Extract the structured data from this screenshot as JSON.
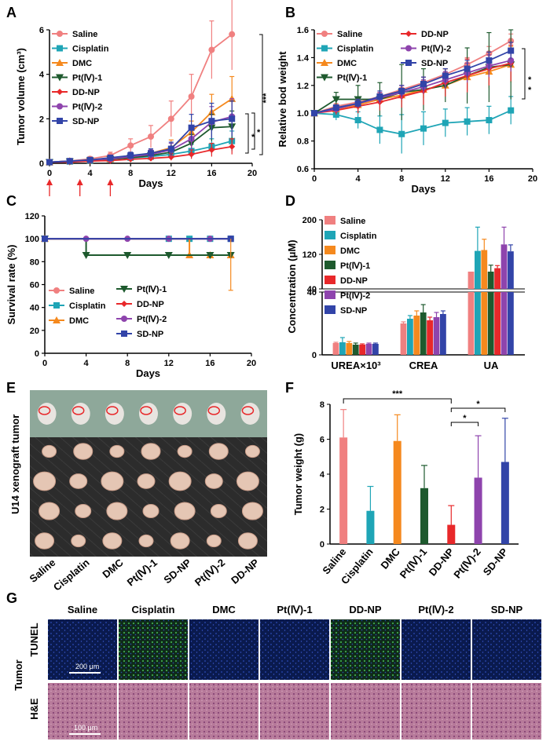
{
  "panel_letters": [
    "A",
    "B",
    "C",
    "D",
    "E",
    "F",
    "G"
  ],
  "colors": {
    "Saline": "#f08080",
    "Cisplatin": "#1fa5b6",
    "DMC": "#f5891e",
    "Pt(Ⅳ)-1": "#1e5a2e",
    "DD-NP": "#e8282a",
    "Pt(Ⅳ)-2": "#8e44ad",
    "SD-NP": "#3244a8"
  },
  "chart_data": [
    {
      "panel": "A",
      "type": "line",
      "xlabel": "Days",
      "ylabel": "Tumor volume (cm³)",
      "xlim": [
        0,
        20
      ],
      "ylim": [
        0,
        6
      ],
      "xticks": [
        "0",
        "4",
        "8",
        "12",
        "16",
        "20"
      ],
      "yticks": [
        "0",
        "2",
        "4",
        "6"
      ],
      "x": [
        0,
        2,
        4,
        6,
        8,
        10,
        12,
        14,
        16,
        18
      ],
      "series": [
        {
          "name": "Saline",
          "values": [
            0.05,
            0.1,
            0.2,
            0.35,
            0.8,
            1.2,
            2.0,
            3.0,
            5.1,
            5.8
          ],
          "err": [
            0.03,
            0.05,
            0.1,
            0.15,
            0.3,
            0.5,
            0.8,
            1.0,
            1.3,
            1.6
          ]
        },
        {
          "name": "Cisplatin",
          "values": [
            0.05,
            0.08,
            0.12,
            0.18,
            0.25,
            0.3,
            0.4,
            0.55,
            0.75,
            1.0
          ],
          "err": [
            0.02,
            0.03,
            0.05,
            0.08,
            0.1,
            0.15,
            0.2,
            0.3,
            0.35,
            0.45
          ]
        },
        {
          "name": "DMC",
          "values": [
            0.05,
            0.1,
            0.15,
            0.2,
            0.3,
            0.45,
            0.7,
            1.4,
            2.3,
            2.9
          ],
          "err": [
            0.02,
            0.05,
            0.08,
            0.1,
            0.15,
            0.2,
            0.35,
            0.5,
            0.8,
            1.0
          ]
        },
        {
          "name": "Pt(Ⅳ)-1",
          "values": [
            0.05,
            0.08,
            0.12,
            0.18,
            0.25,
            0.35,
            0.5,
            0.9,
            1.6,
            1.65
          ],
          "err": [
            0.02,
            0.04,
            0.06,
            0.08,
            0.1,
            0.15,
            0.2,
            0.4,
            0.6,
            0.7
          ]
        },
        {
          "name": "DD-NP",
          "values": [
            0.05,
            0.06,
            0.1,
            0.12,
            0.18,
            0.22,
            0.28,
            0.4,
            0.6,
            0.75
          ],
          "err": [
            0.02,
            0.03,
            0.05,
            0.06,
            0.08,
            0.1,
            0.15,
            0.2,
            0.3,
            0.35
          ]
        },
        {
          "name": "Pt(Ⅳ)-2",
          "values": [
            0.05,
            0.1,
            0.15,
            0.2,
            0.3,
            0.4,
            0.6,
            1.1,
            1.85,
            2.1
          ],
          "err": [
            0.02,
            0.05,
            0.08,
            0.1,
            0.15,
            0.2,
            0.3,
            0.5,
            0.7,
            0.8
          ]
        },
        {
          "name": "SD-NP",
          "values": [
            0.05,
            0.1,
            0.15,
            0.25,
            0.35,
            0.45,
            0.65,
            1.6,
            1.9,
            2.0
          ],
          "err": [
            0.02,
            0.05,
            0.08,
            0.1,
            0.15,
            0.2,
            0.3,
            0.6,
            0.8,
            0.8
          ]
        }
      ],
      "significance": [
        "***",
        "*",
        "*"
      ],
      "dosing_days": [
        0,
        3,
        6
      ]
    },
    {
      "panel": "B",
      "type": "line",
      "xlabel": "Days",
      "ylabel": "Relative bod weight",
      "xlim": [
        0,
        20
      ],
      "ylim": [
        0.6,
        1.6
      ],
      "xticks": [
        "0",
        "4",
        "8",
        "12",
        "16",
        "20"
      ],
      "yticks": [
        "0.6",
        "0.8",
        "1.0",
        "1.2",
        "1.4",
        "1.6"
      ],
      "x": [
        0,
        2,
        4,
        6,
        8,
        10,
        12,
        14,
        16,
        18
      ],
      "series": [
        {
          "name": "Saline",
          "values": [
            1.0,
            1.05,
            1.08,
            1.12,
            1.17,
            1.22,
            1.28,
            1.35,
            1.43,
            1.52
          ],
          "err": [
            0.01,
            0.02,
            0.02,
            0.03,
            0.03,
            0.04,
            0.04,
            0.05,
            0.05,
            0.05
          ]
        },
        {
          "name": "Cisplatin",
          "values": [
            1.0,
            0.99,
            0.95,
            0.88,
            0.85,
            0.89,
            0.93,
            0.94,
            0.95,
            1.02
          ],
          "err": [
            0.01,
            0.04,
            0.06,
            0.1,
            0.14,
            0.12,
            0.1,
            0.1,
            0.1,
            0.1
          ]
        },
        {
          "name": "DMC",
          "values": [
            1.0,
            1.03,
            1.06,
            1.1,
            1.13,
            1.17,
            1.2,
            1.26,
            1.3,
            1.35
          ],
          "err": [
            0.01,
            0.02,
            0.03,
            0.04,
            0.05,
            0.06,
            0.08,
            0.1,
            0.12,
            0.13
          ]
        },
        {
          "name": "Pt(Ⅳ)-1",
          "values": [
            1.0,
            1.1,
            1.1,
            1.1,
            1.15,
            1.17,
            1.2,
            1.27,
            1.33,
            1.35
          ],
          "err": [
            0.01,
            0.05,
            0.1,
            0.12,
            0.2,
            0.15,
            0.12,
            0.2,
            0.25,
            0.25
          ]
        },
        {
          "name": "DD-NP",
          "values": [
            1.0,
            1.02,
            1.05,
            1.08,
            1.12,
            1.16,
            1.22,
            1.27,
            1.32,
            1.36
          ],
          "err": [
            0.01,
            0.03,
            0.05,
            0.06,
            0.08,
            0.1,
            0.1,
            0.12,
            0.12,
            0.13
          ]
        },
        {
          "name": "Pt(Ⅳ)-2",
          "values": [
            1.0,
            1.03,
            1.07,
            1.11,
            1.15,
            1.19,
            1.24,
            1.29,
            1.34,
            1.38
          ],
          "err": [
            0.01,
            0.02,
            0.03,
            0.04,
            0.05,
            0.05,
            0.06,
            0.07,
            0.08,
            0.08
          ]
        },
        {
          "name": "SD-NP",
          "values": [
            1.0,
            1.04,
            1.07,
            1.12,
            1.16,
            1.21,
            1.27,
            1.32,
            1.38,
            1.45
          ],
          "err": [
            0.01,
            0.02,
            0.03,
            0.04,
            0.04,
            0.05,
            0.05,
            0.06,
            0.06,
            0.06
          ]
        }
      ],
      "significance": [
        "*",
        "*"
      ]
    },
    {
      "panel": "C",
      "type": "line",
      "xlabel": "Days",
      "ylabel": "Survival rate (%)",
      "xlim": [
        0,
        20
      ],
      "ylim": [
        0,
        120
      ],
      "xticks": [
        "0",
        "4",
        "8",
        "12",
        "16",
        "20"
      ],
      "yticks": [
        "0",
        "20",
        "40",
        "60",
        "80",
        "100",
        "120"
      ],
      "series": [
        {
          "name": "Saline",
          "x": [
            0,
            18
          ],
          "values": [
            100,
            100
          ]
        },
        {
          "name": "Cisplatin",
          "x": [
            0,
            12,
            14,
            16,
            18
          ],
          "values": [
            100,
            100,
            100,
            100,
            100
          ]
        },
        {
          "name": "DMC",
          "x": [
            0,
            14,
            16,
            18
          ],
          "values": [
            100,
            85.7,
            85.7,
            85.7
          ]
        },
        {
          "name": "Pt(Ⅳ)-1",
          "x": [
            0,
            4,
            8,
            12,
            16,
            18
          ],
          "values": [
            100,
            85.7,
            85.7,
            85.7,
            85.7,
            85.7
          ]
        },
        {
          "name": "DD-NP",
          "x": [
            0,
            12,
            18
          ],
          "values": [
            100,
            100,
            100
          ]
        },
        {
          "name": "Pt(Ⅳ)-2",
          "x": [
            0,
            4,
            8,
            12,
            16,
            18
          ],
          "values": [
            100,
            100,
            100,
            100,
            100,
            100
          ]
        },
        {
          "name": "SD-NP",
          "x": [
            0,
            18
          ],
          "values": [
            100,
            100
          ]
        }
      ]
    },
    {
      "panel": "D",
      "type": "bar",
      "xlabel": "",
      "ylabel": "Concentration (μM)",
      "categories": [
        "UREA×10³",
        "CREA",
        "UA"
      ],
      "yticks_lower": [
        "0",
        "40"
      ],
      "yticks_upper": [
        "40",
        "120",
        "200"
      ],
      "axis_break_at": 40,
      "series": [
        {
          "name": "Saline",
          "values": [
            7.5,
            20,
            80
          ],
          "err": [
            0.5,
            1,
            0
          ]
        },
        {
          "name": "Cisplatin",
          "values": [
            8,
            23,
            128
          ],
          "err": [
            3,
            2,
            55
          ]
        },
        {
          "name": "DMC",
          "values": [
            7.5,
            25,
            130
          ],
          "err": [
            1,
            3,
            25
          ]
        },
        {
          "name": "Pt(Ⅳ)-1",
          "values": [
            6.5,
            27,
            80
          ],
          "err": [
            1,
            5,
            15
          ]
        },
        {
          "name": "DD-NP",
          "values": [
            6.5,
            22,
            88
          ],
          "err": [
            0.5,
            2,
            6
          ]
        },
        {
          "name": "Pt(Ⅳ)-2",
          "values": [
            7,
            24,
            143
          ],
          "err": [
            0.5,
            3,
            40
          ]
        },
        {
          "name": "SD-NP",
          "values": [
            7,
            26,
            127
          ],
          "err": [
            0.5,
            2,
            15
          ]
        }
      ]
    },
    {
      "panel": "F",
      "type": "bar",
      "xlabel": "",
      "ylabel": "Tumor weight (g)",
      "ylim": [
        0,
        8
      ],
      "yticks": [
        "0",
        "2",
        "4",
        "6",
        "8"
      ],
      "categories": [
        "Saline",
        "Cisplatin",
        "DMC",
        "Pt(Ⅳ)-1",
        "DD-NP",
        "Pt(Ⅳ)-2",
        "SD-NP"
      ],
      "values": [
        6.1,
        1.9,
        5.9,
        3.2,
        1.1,
        3.8,
        4.7
      ],
      "err": [
        1.6,
        1.4,
        1.5,
        1.3,
        1.1,
        2.4,
        2.5
      ],
      "significance": [
        "***",
        "*",
        "*"
      ]
    }
  ],
  "panel_e": {
    "side_label": "U14 xenograft tumor",
    "group_labels": [
      "Saline",
      "Cisplatin",
      "DMC",
      "Pt(Ⅳ)-1",
      "SD-NP",
      "Pt(Ⅳ)-2",
      "DD-NP"
    ]
  },
  "panel_g": {
    "columns": [
      "Saline",
      "Cisplatin",
      "DMC",
      "Pt(Ⅳ)-1",
      "DD-NP",
      "Pt(Ⅳ)-2",
      "SD-NP"
    ],
    "group_label": "Tumor",
    "row_labels": [
      "TUNEL",
      "H&E"
    ],
    "scale_bars": [
      "200 μm",
      "100 μm"
    ]
  }
}
